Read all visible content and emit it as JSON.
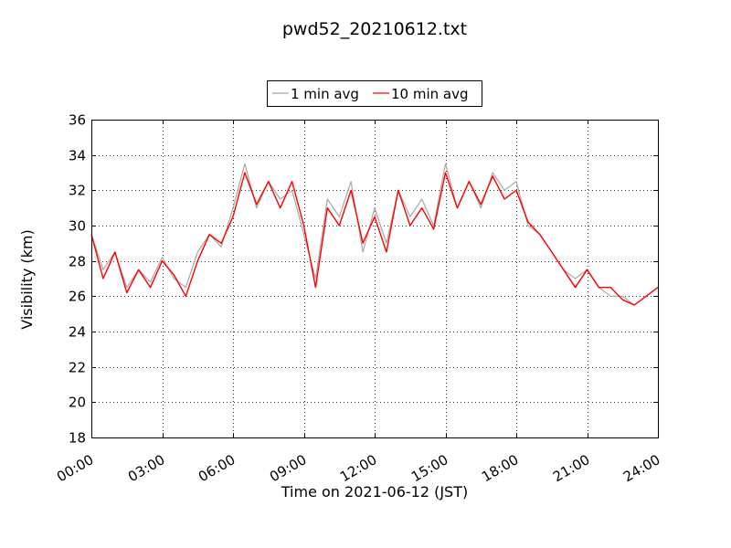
{
  "chart_data": {
    "type": "line",
    "title": "pwd52_20210612.txt",
    "xlabel": "Time on 2021-06-12 (JST)",
    "ylabel": "Visibility (km)",
    "ylim": [
      18,
      36
    ],
    "yticks": [
      18,
      20,
      22,
      24,
      26,
      28,
      30,
      32,
      34,
      36
    ],
    "xlim": [
      "00:00",
      "24:00"
    ],
    "xticks": [
      "00:00",
      "03:00",
      "06:00",
      "09:00",
      "12:00",
      "15:00",
      "18:00",
      "21:00",
      "24:00"
    ],
    "grid": true,
    "legend": {
      "placement": "top-center",
      "entries": [
        "1 min avg",
        "10 min avg"
      ]
    },
    "colors": {
      "one_min": "#a8a8a8",
      "ten_min": "#ff0000"
    },
    "series": [
      {
        "name": "1 min avg",
        "x": [
          "00:00",
          "00:30",
          "01:00",
          "01:30",
          "02:00",
          "02:30",
          "03:00",
          "03:30",
          "04:00",
          "04:30",
          "05:00",
          "05:30",
          "06:00",
          "06:30",
          "07:00",
          "07:30",
          "08:00",
          "08:30",
          "09:00",
          "09:30",
          "10:00",
          "10:30",
          "11:00",
          "11:30",
          "12:00",
          "12:30",
          "13:00",
          "13:30",
          "14:00",
          "14:30",
          "15:00",
          "15:30",
          "16:00",
          "16:30",
          "17:00",
          "17:30",
          "18:00",
          "18:30",
          "19:00",
          "19:30",
          "20:00",
          "20:30",
          "21:00",
          "21:30",
          "22:00",
          "22:30",
          "23:00",
          "23:30",
          "24:00"
        ],
        "y": [
          29.5,
          27.5,
          28.5,
          26.5,
          27.5,
          26.8,
          28.2,
          27.0,
          26.5,
          28.5,
          29.5,
          28.8,
          31.0,
          33.5,
          31.0,
          32.5,
          31.5,
          32.0,
          29.5,
          27.0,
          31.5,
          30.5,
          32.5,
          28.5,
          31.0,
          29.0,
          32.0,
          30.5,
          31.5,
          30.0,
          33.5,
          31.0,
          32.5,
          31.0,
          33.0,
          32.0,
          32.5,
          30.0,
          29.5,
          28.5,
          27.5,
          27.0,
          27.5,
          26.5,
          26.0,
          26.0,
          25.5,
          26.0,
          26.5
        ]
      },
      {
        "name": "10 min avg",
        "x": [
          "00:00",
          "00:30",
          "01:00",
          "01:30",
          "02:00",
          "02:30",
          "03:00",
          "03:30",
          "04:00",
          "04:30",
          "05:00",
          "05:30",
          "06:00",
          "06:30",
          "07:00",
          "07:30",
          "08:00",
          "08:30",
          "09:00",
          "09:30",
          "10:00",
          "10:30",
          "11:00",
          "11:30",
          "12:00",
          "12:30",
          "13:00",
          "13:30",
          "14:00",
          "14:30",
          "15:00",
          "15:30",
          "16:00",
          "16:30",
          "17:00",
          "17:30",
          "18:00",
          "18:30",
          "19:00",
          "19:30",
          "20:00",
          "20:30",
          "21:00",
          "21:30",
          "22:00",
          "22:30",
          "23:00",
          "23:30",
          "24:00"
        ],
        "y": [
          29.5,
          27.0,
          28.5,
          26.2,
          27.5,
          26.5,
          28.0,
          27.2,
          26.0,
          28.0,
          29.5,
          29.0,
          30.5,
          33.0,
          31.2,
          32.5,
          31.0,
          32.5,
          30.0,
          26.5,
          31.0,
          30.0,
          32.0,
          29.0,
          30.5,
          28.5,
          32.0,
          30.0,
          31.0,
          29.8,
          33.0,
          31.0,
          32.5,
          31.2,
          32.8,
          31.5,
          32.0,
          30.2,
          29.5,
          28.5,
          27.5,
          26.5,
          27.5,
          26.5,
          26.5,
          25.8,
          25.5,
          26.0,
          26.5
        ]
      }
    ]
  }
}
